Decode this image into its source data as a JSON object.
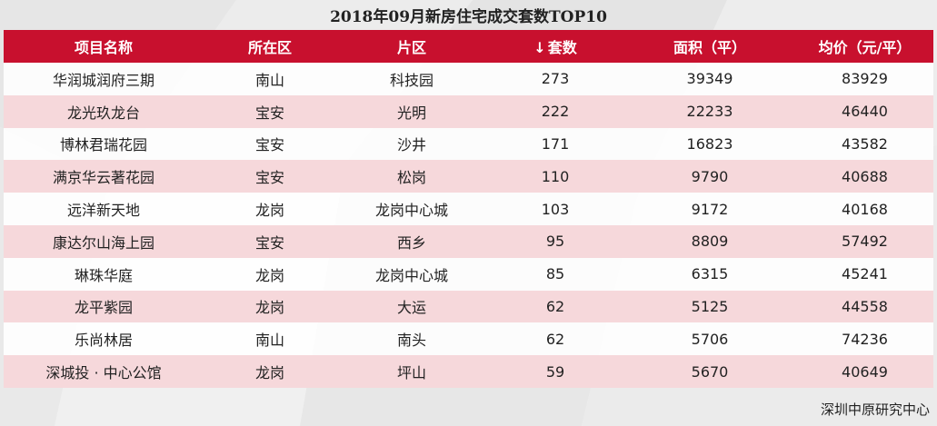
{
  "title": "2018年09月新房住宅成交套数TOP10",
  "icons": {
    "sort": "sort-down-arrow-icon"
  },
  "colors": {
    "header": "#c8102e",
    "stripe": "#f6d8db"
  },
  "chart_data": {
    "type": "table",
    "title": "2018年09月新房住宅成交套数TOP10",
    "columns": [
      "项目名称",
      "所在区",
      "片区",
      "套数",
      "面积（平）",
      "均价（元/平）"
    ],
    "sort_marker": "↓",
    "rows": [
      [
        "华润城润府三期",
        "南山",
        "科技园",
        "273",
        "39349",
        "83929"
      ],
      [
        "龙光玖龙台",
        "宝安",
        "光明",
        "222",
        "22233",
        "46440"
      ],
      [
        "博林君瑞花园",
        "宝安",
        "沙井",
        "171",
        "16823",
        "43582"
      ],
      [
        "满京华云著花园",
        "宝安",
        "松岗",
        "110",
        "9790",
        "40688"
      ],
      [
        "远洋新天地",
        "龙岗",
        "龙岗中心城",
        "103",
        "9172",
        "40168"
      ],
      [
        "康达尔山海上园",
        "宝安",
        "西乡",
        "95",
        "8809",
        "57492"
      ],
      [
        "琳珠华庭",
        "龙岗",
        "龙岗中心城",
        "85",
        "6315",
        "45241"
      ],
      [
        "龙平紫园",
        "龙岗",
        "大运",
        "62",
        "5125",
        "44558"
      ],
      [
        "乐尚林居",
        "南山",
        "南头",
        "62",
        "5706",
        "74236"
      ],
      [
        "深城投 · 中心公馆",
        "龙岗",
        "坪山",
        "59",
        "5670",
        "40649"
      ]
    ]
  },
  "source": "深圳中原研究中心"
}
